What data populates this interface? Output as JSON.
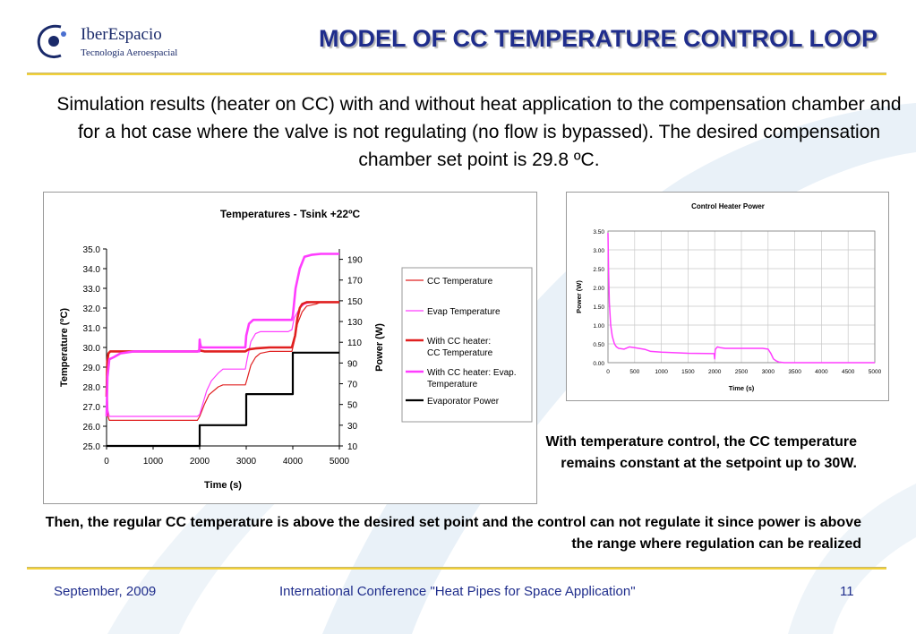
{
  "logo": {
    "name": "IberEspacio",
    "tagline": "Tecnología Aeroespacial"
  },
  "title": "MODEL OF CC TEMPERATURE CONTROL LOOP",
  "intro": "Simulation results (heater on CC) with and without heat application to the compensation chamber and for a hot case where the valve is not regulating (no flow is bypassed). The desired compensation chamber set point is 29.8 ºC.",
  "note_control": "With temperature control, the CC temperature remains constant at the setpoint up to 30W.",
  "note_regulation": "Then, the regular CC temperature is above the desired set point and the control can not regulate it since power is above the range where regulation can be realized",
  "footer": {
    "date": "September, 2009",
    "conference": "International Conference \"Heat Pipes for Space Application\"",
    "page": "11"
  },
  "chart_data": [
    {
      "type": "line",
      "title": "Temperatures - Tsink +22ºC",
      "xlabel": "Time (s)",
      "ylabel": "Temperature (ºC)",
      "y2label": "Power (W)",
      "xlim": [
        0,
        5000
      ],
      "ylim": [
        25.0,
        35.0
      ],
      "y2lim": [
        10,
        200
      ],
      "x_ticks": [
        "0",
        "1000",
        "2000",
        "3000",
        "4000",
        "5000"
      ],
      "y_ticks": [
        "25.0",
        "26.0",
        "27.0",
        "28.0",
        "29.0",
        "30.0",
        "31.0",
        "32.0",
        "33.0",
        "34.0",
        "35.0"
      ],
      "y2_ticks": [
        "10",
        "30",
        "50",
        "70",
        "90",
        "110",
        "130",
        "150",
        "170",
        "190"
      ],
      "grid": false,
      "legend_position": "right",
      "series": [
        {
          "name": "CC Temperature",
          "axis": "left",
          "color": "#e02020",
          "width": 1.2,
          "x": [
            0,
            30,
            60,
            200,
            400,
            1000,
            1500,
            1950,
            2000,
            2100,
            2200,
            2400,
            2500,
            2800,
            2980,
            3020,
            3100,
            3200,
            3300,
            3500,
            3900,
            3980,
            4030,
            4100,
            4200,
            4300,
            4500,
            4600,
            4980,
            5000
          ],
          "y": [
            28.5,
            26.5,
            26.3,
            26.3,
            26.3,
            26.3,
            26.3,
            26.3,
            26.5,
            27.1,
            27.6,
            28.0,
            28.1,
            28.1,
            28.1,
            28.4,
            29.1,
            29.5,
            29.7,
            29.8,
            29.8,
            29.8,
            30.3,
            31.2,
            31.8,
            32.1,
            32.2,
            32.3,
            32.3,
            32.3
          ]
        },
        {
          "name": "Evap Temperature",
          "axis": "left",
          "color": "#ff3dff",
          "width": 1.2,
          "x": [
            0,
            30,
            60,
            200,
            1000,
            1950,
            2000,
            2150,
            2250,
            2400,
            2500,
            2800,
            2980,
            3020,
            3100,
            3200,
            3300,
            3500,
            3900,
            3980,
            4030,
            4150,
            4250,
            4400,
            4600,
            4980,
            5000
          ],
          "y": [
            28.5,
            26.8,
            26.5,
            26.5,
            26.5,
            26.5,
            26.6,
            27.8,
            28.3,
            28.7,
            28.9,
            28.9,
            28.9,
            29.4,
            30.3,
            30.7,
            30.8,
            30.8,
            30.8,
            30.9,
            31.5,
            32.0,
            32.2,
            32.3,
            32.3,
            32.3,
            32.3
          ]
        },
        {
          "name": "With CC heater:CC Temperature",
          "axis": "left",
          "color": "#e02020",
          "width": 2.6,
          "x": [
            0,
            15,
            40,
            80,
            150,
            300,
            600,
            1000,
            1500,
            1950,
            2000,
            2100,
            2400,
            2980,
            3050,
            3200,
            3500,
            3980,
            4050,
            4100,
            4150,
            4200,
            4300,
            4500,
            5000
          ],
          "y": [
            27.5,
            29.3,
            29.7,
            29.8,
            29.8,
            29.8,
            29.8,
            29.8,
            29.8,
            29.8,
            29.85,
            29.8,
            29.8,
            29.8,
            29.9,
            29.95,
            30.0,
            30.0,
            30.6,
            31.5,
            32.0,
            32.2,
            32.3,
            32.3,
            32.3
          ]
        },
        {
          "name": "With CC heater: Evap. Temperature",
          "axis": "left",
          "color": "#ff3dff",
          "width": 2.6,
          "x": [
            0,
            20,
            60,
            150,
            300,
            600,
            1000,
            1500,
            1990,
            2000,
            2010,
            2030,
            2100,
            2400,
            2980,
            3000,
            3060,
            3150,
            3300,
            3500,
            3980,
            4000,
            4060,
            4150,
            4250,
            4400,
            4600,
            4800,
            5000
          ],
          "y": [
            26.5,
            28.5,
            29.4,
            29.5,
            29.7,
            29.8,
            29.8,
            29.8,
            29.8,
            30.4,
            30.2,
            30.0,
            30.0,
            30.0,
            30.0,
            30.6,
            31.2,
            31.4,
            31.4,
            31.4,
            31.4,
            31.6,
            33.0,
            34.0,
            34.6,
            34.7,
            34.75,
            34.75,
            34.75
          ]
        },
        {
          "name": "Evaporator Power",
          "axis": "right",
          "color": "#000000",
          "width": 2.2,
          "x": [
            0,
            2000,
            2000,
            3000,
            3000,
            4000,
            4000,
            5000
          ],
          "y": [
            10,
            10,
            30,
            30,
            60,
            60,
            100,
            100
          ]
        }
      ]
    },
    {
      "type": "line",
      "title": "Control Heater Power",
      "xlabel": "Time (s)",
      "ylabel": "Power (W)",
      "xlim": [
        0,
        5000
      ],
      "ylim": [
        0.0,
        3.5
      ],
      "x_ticks": [
        "0",
        "500",
        "1000",
        "1500",
        "2000",
        "2500",
        "3000",
        "3500",
        "4000",
        "4500",
        "5000"
      ],
      "y_ticks": [
        "0.00",
        "0.50",
        "1.00",
        "1.50",
        "2.00",
        "2.50",
        "3.00",
        "3.50"
      ],
      "grid": true,
      "series": [
        {
          "name": "",
          "color": "#ff3dff",
          "width": 1.5,
          "x": [
            0,
            10,
            25,
            50,
            80,
            120,
            160,
            200,
            300,
            400,
            500,
            700,
            800,
            1000,
            1500,
            1990,
            2000,
            2010,
            2050,
            2100,
            2200,
            2500,
            2900,
            3000,
            3050,
            3100,
            3150,
            3200,
            3300,
            3500,
            4000,
            4500,
            5000
          ],
          "y": [
            3.45,
            2.5,
            1.6,
            1.0,
            0.7,
            0.5,
            0.42,
            0.38,
            0.36,
            0.42,
            0.4,
            0.35,
            0.3,
            0.28,
            0.25,
            0.24,
            0.1,
            0.35,
            0.42,
            0.4,
            0.38,
            0.38,
            0.38,
            0.36,
            0.25,
            0.1,
            0.05,
            0.02,
            0.0,
            0.0,
            0.0,
            0.0,
            0.0
          ]
        }
      ]
    }
  ]
}
